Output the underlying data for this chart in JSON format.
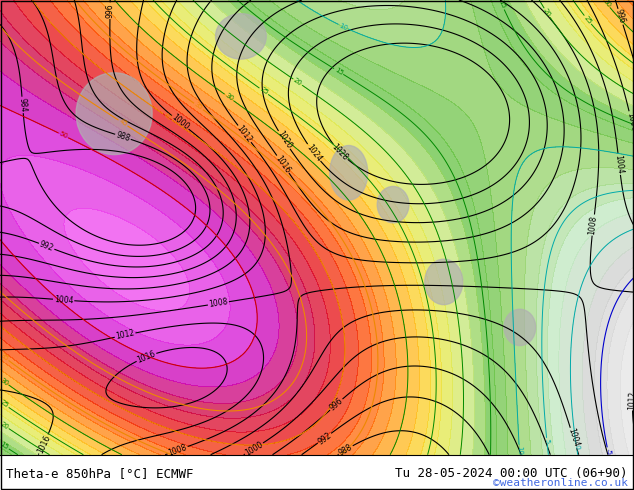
{
  "title_left": "Theta-e 850hPa [°C] ECMWF",
  "title_right": "Tu 28-05-2024 00:00 UTC (06+90)",
  "copyright": "©weatheronline.co.uk",
  "bg_color": "#ffffff",
  "border_color": "#000000",
  "label_color_left": "#000000",
  "label_color_right": "#000000",
  "copyright_color": "#4169e1",
  "figsize": [
    6.34,
    4.9
  ],
  "dpi": 100,
  "map_bg_colors": {
    "sea": "#e8f4f8",
    "land_gray": "#d0d0d0",
    "land_green_light": "#c8e6a0",
    "land_green_mid": "#a8d870",
    "land_green_dark": "#78c840"
  },
  "contour_colors": {
    "pressure_black": "#000000",
    "theta_cyan": "#00cccc",
    "theta_blue": "#0000ff",
    "theta_green": "#00aa00",
    "theta_yellow": "#cccc00",
    "theta_orange": "#ff8800",
    "theta_red": "#dd0000",
    "theta_pink": "#dd00dd"
  },
  "bottom_bar_height": 0.072,
  "bottom_bar_color": "#ffffff",
  "font_size_bottom": 9,
  "font_size_title": 9
}
